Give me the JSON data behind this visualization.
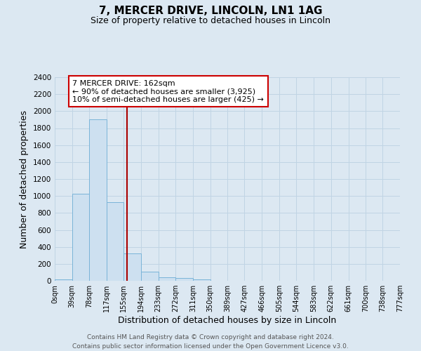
{
  "title": "7, MERCER DRIVE, LINCOLN, LN1 1AG",
  "subtitle": "Size of property relative to detached houses in Lincoln",
  "xlabel": "Distribution of detached houses by size in Lincoln",
  "ylabel": "Number of detached properties",
  "bin_edges": [
    0,
    39,
    78,
    117,
    155,
    194,
    233,
    272,
    311,
    350,
    389,
    427,
    466,
    505,
    544,
    583,
    622,
    661,
    700,
    738,
    777
  ],
  "bin_labels": [
    "0sqm",
    "39sqm",
    "78sqm",
    "117sqm",
    "155sqm",
    "194sqm",
    "233sqm",
    "272sqm",
    "311sqm",
    "350sqm",
    "389sqm",
    "427sqm",
    "466sqm",
    "505sqm",
    "544sqm",
    "583sqm",
    "622sqm",
    "661sqm",
    "700sqm",
    "738sqm",
    "777sqm"
  ],
  "bar_heights": [
    20,
    1030,
    1900,
    930,
    320,
    105,
    45,
    30,
    20,
    0,
    0,
    0,
    0,
    0,
    0,
    0,
    0,
    0,
    0,
    0
  ],
  "bar_color": "#cde0f0",
  "bar_edge_color": "#7ab4d8",
  "property_value": 162,
  "vline_color": "#aa0000",
  "annotation_title": "7 MERCER DRIVE: 162sqm",
  "annotation_line1": "← 90% of detached houses are smaller (3,925)",
  "annotation_line2": "10% of semi-detached houses are larger (425) →",
  "annotation_box_color": "#ffffff",
  "annotation_box_edge_color": "#cc0000",
  "ylim": [
    0,
    2400
  ],
  "yticks": [
    0,
    200,
    400,
    600,
    800,
    1000,
    1200,
    1400,
    1600,
    1800,
    2000,
    2200,
    2400
  ],
  "grid_color": "#c0d4e4",
  "background_color": "#dce8f2",
  "footer_line1": "Contains HM Land Registry data © Crown copyright and database right 2024.",
  "footer_line2": "Contains public sector information licensed under the Open Government Licence v3.0."
}
